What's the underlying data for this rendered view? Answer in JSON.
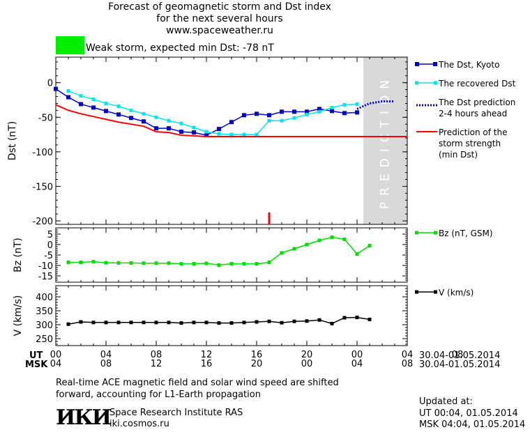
{
  "header": {
    "title_line1": "Forecast of geomagnetic storm and Dst index",
    "title_line2": "for the next several hours",
    "title_line3": "www.spaceweather.ru",
    "storm_label": "Weak storm, expected min Dst: -78 nT",
    "storm_color": "#00ee00"
  },
  "chart_data": [
    {
      "type": "line",
      "ylabel": "Dst (nT)",
      "ylim": [
        -205,
        37
      ],
      "yticks": [
        0,
        -50,
        -100,
        -150,
        -200
      ],
      "ytick_labels": [
        "0",
        "-50",
        "-100",
        "-150",
        "-200"
      ],
      "xlim": [
        0,
        28
      ],
      "prediction_band": [
        24.5,
        28
      ],
      "prediction_text": "PREDICTION",
      "min_dst_marker_x": 17,
      "series": [
        {
          "name": "The Dst, Kyoto",
          "color": "#0000cc",
          "x": [
            0,
            1,
            2,
            3,
            4,
            5,
            6,
            7,
            8,
            9,
            10,
            11,
            12,
            13,
            14,
            15,
            16,
            17,
            18,
            19,
            20,
            21,
            22,
            23,
            24
          ],
          "values": [
            -9,
            -21,
            -31,
            -36,
            -41,
            -46,
            -51,
            -56,
            -66,
            -66,
            -71,
            -72,
            -76,
            -67,
            -57,
            -47,
            -45,
            -47,
            -42,
            -42,
            -42,
            -38,
            -41,
            -44,
            -43
          ]
        },
        {
          "name": "The recovered Dst",
          "color": "#00e5ee",
          "x": [
            1,
            2,
            3,
            4,
            5,
            6,
            7,
            8,
            9,
            10,
            11,
            12,
            13,
            14,
            15,
            16,
            17,
            18,
            19,
            20,
            21,
            22,
            23,
            24
          ],
          "values": [
            -12,
            -19,
            -24,
            -30,
            -34,
            -40,
            -45,
            -50,
            -55,
            -59,
            -65,
            -71,
            -74,
            -75,
            -75,
            -75,
            -55,
            -55,
            -51,
            -46,
            -42,
            -36,
            -32,
            -31
          ]
        },
        {
          "name": "The Dst prediction 2-4 hours ahead",
          "color": "#0000cc",
          "x": [
            24,
            25,
            26,
            27
          ],
          "values": [
            -38,
            -30,
            -27,
            -27
          ]
        },
        {
          "name": "Prediction of the storm strength (min Dst)",
          "color": "#ff0000",
          "x": [
            0,
            1,
            2,
            3,
            4,
            5,
            6,
            7,
            8,
            9,
            10,
            11,
            12,
            13,
            14,
            15,
            16,
            17,
            18,
            19,
            20,
            21,
            22,
            23,
            24,
            25,
            26,
            27,
            28
          ],
          "values": [
            -32,
            -40,
            -45,
            -49,
            -53,
            -57,
            -60,
            -63,
            -71,
            -72,
            -76,
            -77,
            -78,
            -78,
            -78,
            -78,
            -78,
            -78,
            -78,
            -78,
            -78,
            -78,
            -78,
            -78,
            -78,
            -78,
            -78,
            -78,
            -78
          ]
        }
      ],
      "legend": [
        "The Dst, Kyoto",
        "The recovered Dst",
        "The Dst prediction",
        "2-4 hours ahead",
        "Prediction of the",
        "storm strength",
        "(min Dst)"
      ]
    },
    {
      "type": "line",
      "ylabel": "Bz (nT)",
      "ylim": [
        -18,
        8
      ],
      "yticks": [
        5,
        0,
        -5,
        -10,
        -15
      ],
      "ytick_labels": [
        "5",
        "0",
        "-5",
        "-10",
        "-15"
      ],
      "series": [
        {
          "name": "Bz (nT, GSM)",
          "color": "#00dd00",
          "x": [
            1,
            2,
            3,
            4,
            5,
            6,
            7,
            8,
            9,
            10,
            11,
            12,
            13,
            14,
            15,
            16,
            17,
            18,
            19,
            20,
            21,
            22,
            23,
            24,
            25
          ],
          "values": [
            -8.5,
            -8.5,
            -8.2,
            -8.7,
            -8.8,
            -8.8,
            -8.9,
            -8.9,
            -8.9,
            -9.2,
            -9.2,
            -9,
            -9.8,
            -9.2,
            -9.2,
            -9.2,
            -8.5,
            -4,
            -2,
            0,
            2,
            3.5,
            2.5,
            -4.5,
            -0.5
          ]
        }
      ]
    },
    {
      "type": "line",
      "ylabel": "V (km/s)",
      "ylim": [
        225,
        440
      ],
      "yticks": [
        400,
        350,
        300,
        250
      ],
      "ytick_labels": [
        "400",
        "350",
        "300",
        "250"
      ],
      "series": [
        {
          "name": "V (km/s)",
          "color": "#000000",
          "x": [
            1,
            2,
            3,
            4,
            5,
            6,
            7,
            8,
            9,
            10,
            11,
            12,
            13,
            14,
            15,
            16,
            17,
            18,
            19,
            20,
            21,
            22,
            23,
            24,
            25
          ],
          "values": [
            302,
            310,
            308,
            308,
            308,
            308,
            308,
            308,
            308,
            306,
            308,
            308,
            306,
            306,
            308,
            310,
            312,
            307,
            312,
            313,
            317,
            304,
            325,
            326,
            319
          ]
        }
      ]
    }
  ],
  "x_axis": {
    "ut_label": "UT",
    "msk_label": "MSK",
    "ut_ticks": [
      "00",
      "04",
      "08",
      "12",
      "16",
      "20",
      "00",
      "04",
      "08"
    ],
    "msk_ticks": [
      "04",
      "08",
      "12",
      "16",
      "20",
      "00",
      "04",
      "08"
    ],
    "date_range_ut": "30.04-01.05.2014",
    "date_range_msk": "30.04-01.05.2014"
  },
  "footer": {
    "note_line1": "Real-time ACE magnetic field and solar wind speed are shifted",
    "note_line2": "forward, accounting for L1-Earth propagation",
    "institute": "Space Research Institute RAS",
    "site": "iki.cosmos.ru",
    "logo_text": "ИКИ",
    "updated_label": "Updated at:",
    "updated_ut": "UT   00:04, 01.05.2014",
    "updated_msk": "MSK 04:04, 01.05.2014"
  }
}
